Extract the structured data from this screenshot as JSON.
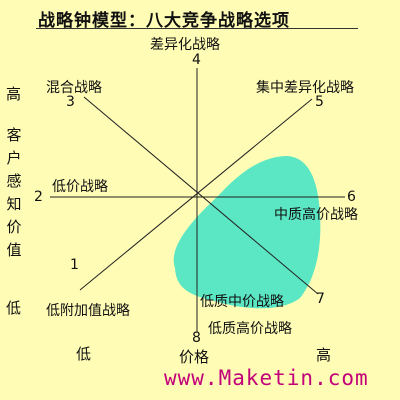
{
  "title": "战略钟模型：八大竞争战略选项",
  "diagram": {
    "strategies": [
      {
        "number": "1",
        "label": "低附加值战略"
      },
      {
        "number": "2",
        "label": "低价战略"
      },
      {
        "number": "3",
        "label": "混合战略"
      },
      {
        "number": "4",
        "label": "差异化战略"
      },
      {
        "number": "5",
        "label": "集中差异化战略"
      },
      {
        "number": "6",
        "label": "中质高价战略"
      },
      {
        "number": "7",
        "label": "低质中价战略"
      },
      {
        "number": "8",
        "label": "低质高价战略"
      }
    ],
    "highlight_color": "#5be7c4",
    "axis_color": "#222222"
  },
  "y_axis": {
    "label": "客户感知价值",
    "high": "高",
    "low": "低"
  },
  "x_axis": {
    "label": "价格",
    "low": "低",
    "high": "高"
  },
  "watermark": "www.Maketin.com"
}
